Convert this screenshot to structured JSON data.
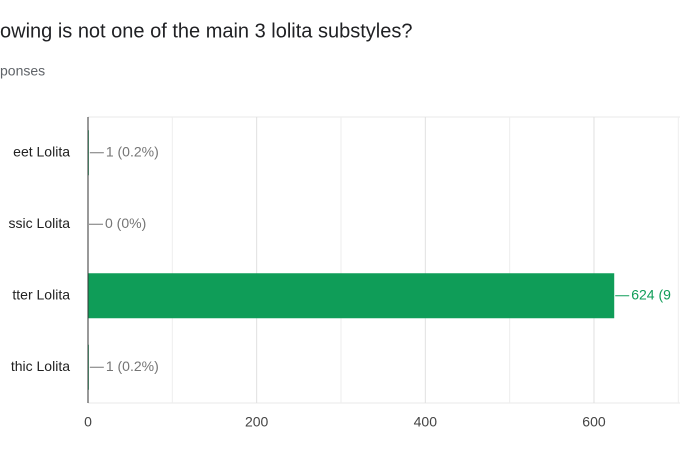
{
  "chart_data": {
    "type": "bar",
    "orientation": "horizontal",
    "title": "owing is not one of the main 3 lolita substyles?",
    "subtitle": "ponses",
    "categories": [
      "eet Lolita",
      "ssic Lolita",
      "tter Lolita",
      "thic Lolita"
    ],
    "values": [
      1,
      0,
      624,
      1
    ],
    "value_labels": [
      "1 (0.2%)",
      "0 (0%)",
      "624 (9",
      "1 (0.2%)"
    ],
    "value_label_colors": [
      "#757575",
      "#757575",
      "#0f9d58",
      "#757575"
    ],
    "color": "#0f9d58",
    "xlim": [
      0,
      702
    ],
    "xticks": [
      0,
      200,
      400,
      600
    ],
    "minor_xticks": [
      100,
      300,
      500,
      700
    ],
    "grid": true
  }
}
